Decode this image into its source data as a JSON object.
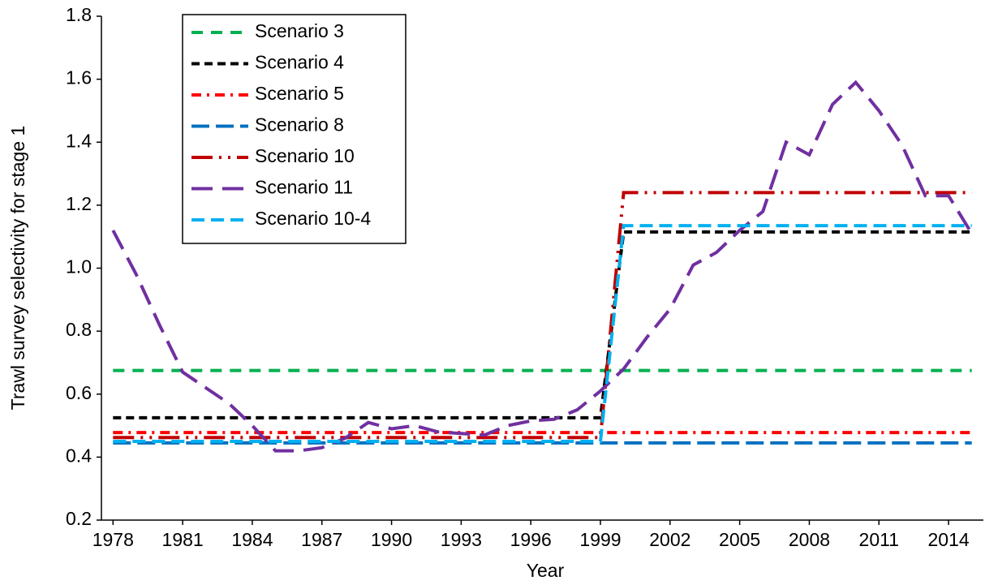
{
  "chart_data": {
    "type": "line",
    "x_label": "Year",
    "y_label": "Trawl survey selectivity for stage 1",
    "x": [
      1978,
      1979,
      1980,
      1981,
      1982,
      1983,
      1984,
      1985,
      1986,
      1987,
      1988,
      1989,
      1990,
      1991,
      1992,
      1993,
      1994,
      1995,
      1996,
      1997,
      1998,
      1999,
      2000,
      2001,
      2002,
      2003,
      2004,
      2005,
      2006,
      2007,
      2008,
      2009,
      2010,
      2011,
      2012,
      2013,
      2014,
      2015
    ],
    "xlim": [
      1977.5,
      2015.5
    ],
    "xticks": [
      1978,
      1981,
      1984,
      1987,
      1990,
      1993,
      1996,
      1999,
      2002,
      2005,
      2008,
      2011,
      2014
    ],
    "ylim": [
      0.2,
      1.8
    ],
    "yticks": [
      0.2,
      0.4,
      0.6,
      0.8,
      {
        "value": 1,
        "label": "1.0"
      },
      1.2,
      1.4,
      1.6,
      1.8
    ],
    "grid": false,
    "legend": "upper left",
    "series": [
      {
        "name": "Scenario 3",
        "color": "#00b050",
        "values": [
          0.675,
          0.675,
          0.675,
          0.675,
          0.675,
          0.675,
          0.675,
          0.675,
          0.675,
          0.675,
          0.675,
          0.675,
          0.675,
          0.675,
          0.675,
          0.675,
          0.675,
          0.675,
          0.675,
          0.675,
          0.675,
          0.675,
          0.675,
          0.675,
          0.675,
          0.675,
          0.675,
          0.675,
          0.675,
          0.675,
          0.675,
          0.675,
          0.675,
          0.675,
          0.675,
          0.675,
          0.675,
          0.675
        ]
      },
      {
        "name": "Scenario 4",
        "color": "#000000",
        "values": [
          0.525,
          0.525,
          0.525,
          0.525,
          0.525,
          0.525,
          0.525,
          0.525,
          0.525,
          0.525,
          0.525,
          0.525,
          0.525,
          0.525,
          0.525,
          0.525,
          0.525,
          0.525,
          0.525,
          0.525,
          0.525,
          0.525,
          1.115,
          1.115,
          1.115,
          1.115,
          1.115,
          1.115,
          1.115,
          1.115,
          1.115,
          1.115,
          1.115,
          1.115,
          1.115,
          1.115,
          1.115,
          1.115
        ]
      },
      {
        "name": "Scenario 5",
        "color": "#ff0000",
        "values": [
          0.478,
          0.478,
          0.478,
          0.478,
          0.478,
          0.478,
          0.478,
          0.478,
          0.478,
          0.478,
          0.478,
          0.478,
          0.478,
          0.478,
          0.478,
          0.478,
          0.478,
          0.478,
          0.478,
          0.478,
          0.478,
          0.478,
          0.478,
          0.478,
          0.478,
          0.478,
          0.478,
          0.478,
          0.478,
          0.478,
          0.478,
          0.478,
          0.478,
          0.478,
          0.478,
          0.478,
          0.478,
          0.478
        ]
      },
      {
        "name": "Scenario 8",
        "color": "#0070c0",
        "values": [
          0.445,
          0.445,
          0.445,
          0.445,
          0.445,
          0.445,
          0.445,
          0.445,
          0.445,
          0.445,
          0.445,
          0.445,
          0.445,
          0.445,
          0.445,
          0.445,
          0.445,
          0.445,
          0.445,
          0.445,
          0.445,
          0.445,
          0.445,
          0.445,
          0.445,
          0.445,
          0.445,
          0.445,
          0.445,
          0.445,
          0.445,
          0.445,
          0.445,
          0.445,
          0.445,
          0.445,
          0.445,
          0.445
        ]
      },
      {
        "name": "Scenario 10",
        "color": "#c00000",
        "values": [
          0.462,
          0.462,
          0.462,
          0.462,
          0.462,
          0.462,
          0.462,
          0.462,
          0.462,
          0.462,
          0.462,
          0.462,
          0.462,
          0.462,
          0.462,
          0.462,
          0.462,
          0.462,
          0.462,
          0.462,
          0.462,
          0.462,
          1.24,
          1.24,
          1.24,
          1.24,
          1.24,
          1.24,
          1.24,
          1.24,
          1.24,
          1.24,
          1.24,
          1.24,
          1.24,
          1.24,
          1.24,
          1.24
        ]
      },
      {
        "name": "Scenario 11",
        "color": "#7030a0",
        "values": [
          1.12,
          0.98,
          0.82,
          0.67,
          0.62,
          0.57,
          0.5,
          0.42,
          0.42,
          0.43,
          0.46,
          0.51,
          0.49,
          0.5,
          0.48,
          0.475,
          0.47,
          0.5,
          0.515,
          0.52,
          0.55,
          0.61,
          0.68,
          0.78,
          0.87,
          1.01,
          1.05,
          1.12,
          1.18,
          1.4,
          1.36,
          1.52,
          1.59,
          1.5,
          1.39,
          1.23,
          1.23,
          1.11
        ]
      },
      {
        "name": "Scenario 10-4",
        "color": "#00b0f0",
        "values": [
          0.45,
          0.45,
          0.45,
          0.45,
          0.45,
          0.45,
          0.45,
          0.45,
          0.45,
          0.45,
          0.45,
          0.45,
          0.45,
          0.45,
          0.45,
          0.45,
          0.45,
          0.45,
          0.45,
          0.45,
          0.45,
          0.45,
          1.135,
          1.135,
          1.135,
          1.135,
          1.135,
          1.135,
          1.135,
          1.135,
          1.135,
          1.135,
          1.135,
          1.135,
          1.135,
          1.135,
          1.135,
          1.135
        ]
      }
    ]
  }
}
